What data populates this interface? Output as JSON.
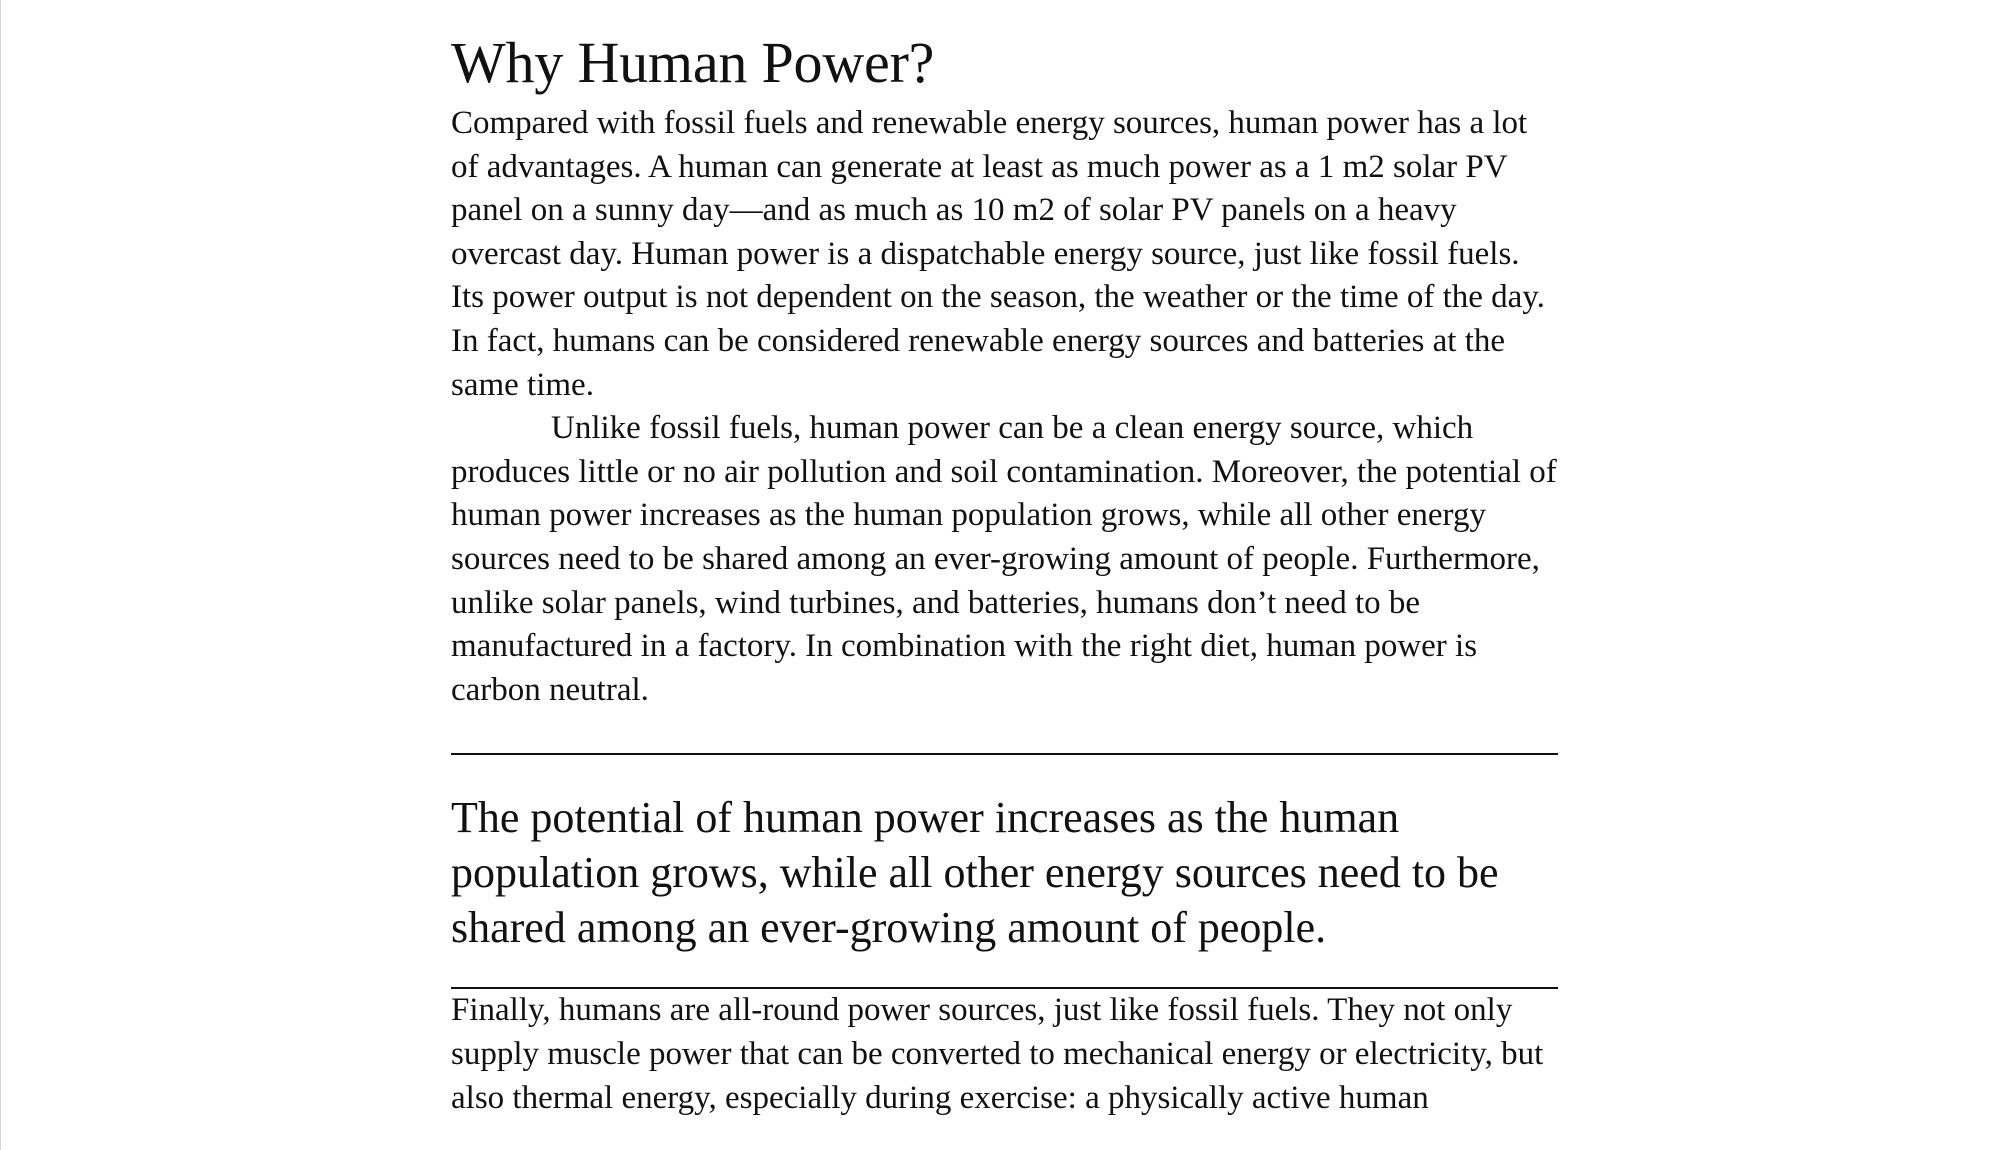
{
  "article": {
    "title": "Why Human Power?",
    "paragraphs": [
      "Compared with fossil fuels and renewable energy sources, human power has a lot of advantages. A human can generate at least as much power as a 1 m2 solar PV panel on a sunny day—and as much as 10 m2 of solar PV panels on a heavy overcast day. Human power is a dispatchable energy source, just like fossil fuels. Its power output is not dependent on the season, the weather or the time of the day. In fact, humans can be considered renewable energy sources and batteries at the same time.",
      "Unlike fossil fuels, human power can be a clean energy source, which produces little or no air pollution and soil contamination. Moreover, the potential of human power increases as the human population grows, while all other energy sources need to be shared among an ever-growing amount of people. Furthermore, unlike solar panels, wind turbines, and batteries, humans don’t need to be manufactured in a factory. In combination with the right diet, human power is carbon neutral."
    ],
    "pull_quote": "The potential of human power increases as the human population grows, while all other energy sources need to be shared among an ever-growing amount of people.",
    "continuation": "Finally, humans are all-round power sources, just like fossil fuels. They not only supply muscle power that can be converted to mechanical energy or electricity, but also thermal energy, especially during exercise: a physically active human"
  }
}
